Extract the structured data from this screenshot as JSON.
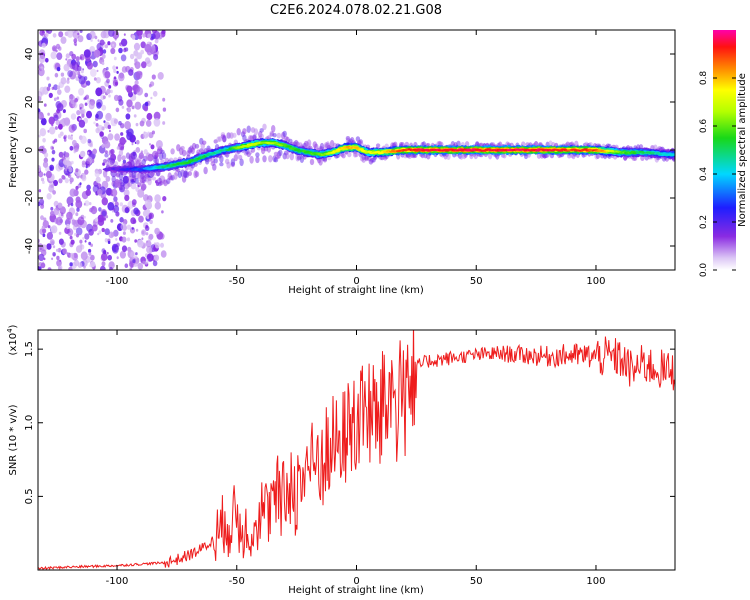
{
  "title": "C2E6.2024.078.02.21.G08",
  "colors": {
    "snr_line": "#ee1c1c",
    "axis": "#000000",
    "scatter_purple": "#7b2be0",
    "ridge_core": "#e0182a"
  },
  "chart_data": [
    {
      "type": "heatmap",
      "xlabel": "Height of straight line (km)",
      "ylabel": "Frequency (Hz)",
      "xlim": [
        -133,
        133
      ],
      "ylim": [
        -50,
        50
      ],
      "xticks": [
        -100,
        -50,
        0,
        50,
        100
      ],
      "yticks": [
        -40,
        -20,
        0,
        20,
        40
      ],
      "grid": false,
      "colorbar": {
        "label": "Normalized spectral amplitude",
        "range": [
          0,
          1
        ],
        "ticks": [
          "0.0",
          "0.2",
          "0.4",
          "0.6",
          "0.8"
        ],
        "tick_values": [
          0.0,
          0.2,
          0.4,
          0.6,
          0.8
        ],
        "colormap": "rainbow (white-purple-blue-cyan-green-yellow-red-magenta)"
      },
      "noise_region": {
        "x": [
          -133,
          -83
        ],
        "freq": [
          -50,
          50
        ]
      },
      "ridge": {
        "x": [
          -105,
          -90,
          -80,
          -70,
          -62,
          -55,
          -50,
          -45,
          -40,
          -35,
          -30,
          -25,
          -20,
          -15,
          -10,
          -5,
          0,
          5,
          10,
          20,
          30,
          40,
          50,
          60,
          70,
          80,
          90,
          100,
          110,
          120,
          133
        ],
        "freq": [
          -8,
          -8,
          -7,
          -5,
          -2,
          0,
          1,
          2,
          3,
          3,
          2,
          0,
          -1,
          -2,
          -1,
          1,
          1,
          -1,
          -1,
          0,
          0,
          0,
          0,
          0,
          0,
          0,
          0,
          0,
          -1,
          -1,
          -2
        ],
        "amplitude": [
          0.15,
          0.3,
          0.5,
          0.55,
          0.5,
          0.45,
          0.6,
          0.7,
          0.65,
          0.65,
          0.6,
          0.55,
          0.55,
          0.6,
          0.7,
          0.8,
          0.8,
          0.7,
          0.75,
          0.9,
          0.95,
          0.95,
          0.95,
          0.95,
          0.95,
          0.95,
          0.9,
          0.9,
          0.6,
          0.5,
          0.4
        ]
      }
    },
    {
      "type": "line",
      "xlabel": "Height of straight line (km)",
      "ylabel": "SNR (10 * v/v)",
      "multiplier": "(x10",
      "multiplier_exp": "4",
      "multiplier_close": ")",
      "xlim": [
        -133,
        133
      ],
      "ylim": [
        0,
        1.63
      ],
      "xticks": [
        -100,
        -50,
        0,
        50,
        100
      ],
      "yticks": [
        0.5,
        1.0,
        1.5
      ],
      "ytick_labels": [
        "0.5",
        "1.0",
        "1.5"
      ],
      "grid": false,
      "series": [
        {
          "x": [
            -133,
            -120,
            -100,
            -90,
            -80,
            -75,
            -70,
            -65,
            -60,
            -57,
            -55,
            -53,
            -50,
            -47,
            -45,
            -42,
            -40,
            -37,
            -35,
            -32,
            -30,
            -28,
            -25,
            -22,
            -20,
            -17,
            -15,
            -12,
            -10,
            -7,
            -5,
            -2,
            0,
            2,
            5,
            8,
            10,
            12,
            15,
            18,
            20,
            22,
            25,
            30,
            40,
            50,
            60,
            70,
            80,
            90,
            100,
            110,
            115,
            120,
            125,
            130,
            133
          ],
          "y": [
            0.01,
            0.02,
            0.03,
            0.04,
            0.05,
            0.07,
            0.1,
            0.14,
            0.2,
            0.25,
            0.38,
            0.3,
            0.35,
            0.28,
            0.3,
            0.3,
            0.4,
            0.38,
            0.45,
            0.5,
            0.45,
            0.6,
            0.55,
            0.65,
            0.75,
            0.7,
            0.8,
            0.75,
            0.85,
            0.85,
            0.9,
            1.0,
            1.0,
            1.05,
            1.1,
            1.0,
            1.12,
            1.15,
            1.2,
            1.15,
            1.25,
            1.3,
            1.38,
            1.42,
            1.44,
            1.46,
            1.47,
            1.46,
            1.45,
            1.46,
            1.45,
            1.44,
            1.35,
            1.4,
            1.37,
            1.35,
            1.35
          ]
        }
      ]
    }
  ]
}
